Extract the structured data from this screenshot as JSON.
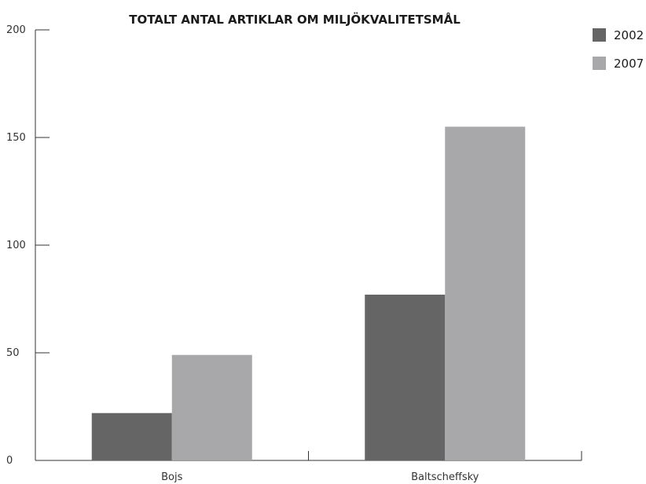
{
  "chart_data": {
    "type": "bar",
    "title": "TOTALT ANTAL ARTIKLAR OM MILJÖKVALITETSMÅL",
    "xlabel": "",
    "ylabel": "",
    "categories": [
      "Bojs",
      "Baltscheffsky"
    ],
    "series": [
      {
        "name": "2002",
        "values": [
          22,
          77
        ],
        "color": "#656565"
      },
      {
        "name": "2007",
        "values": [
          49,
          155
        ],
        "color": "#a8a8aa"
      }
    ],
    "ylim": [
      0,
      200
    ],
    "yticks": [
      0,
      50,
      100,
      150,
      200
    ],
    "grid": false,
    "legend": "top-right"
  }
}
